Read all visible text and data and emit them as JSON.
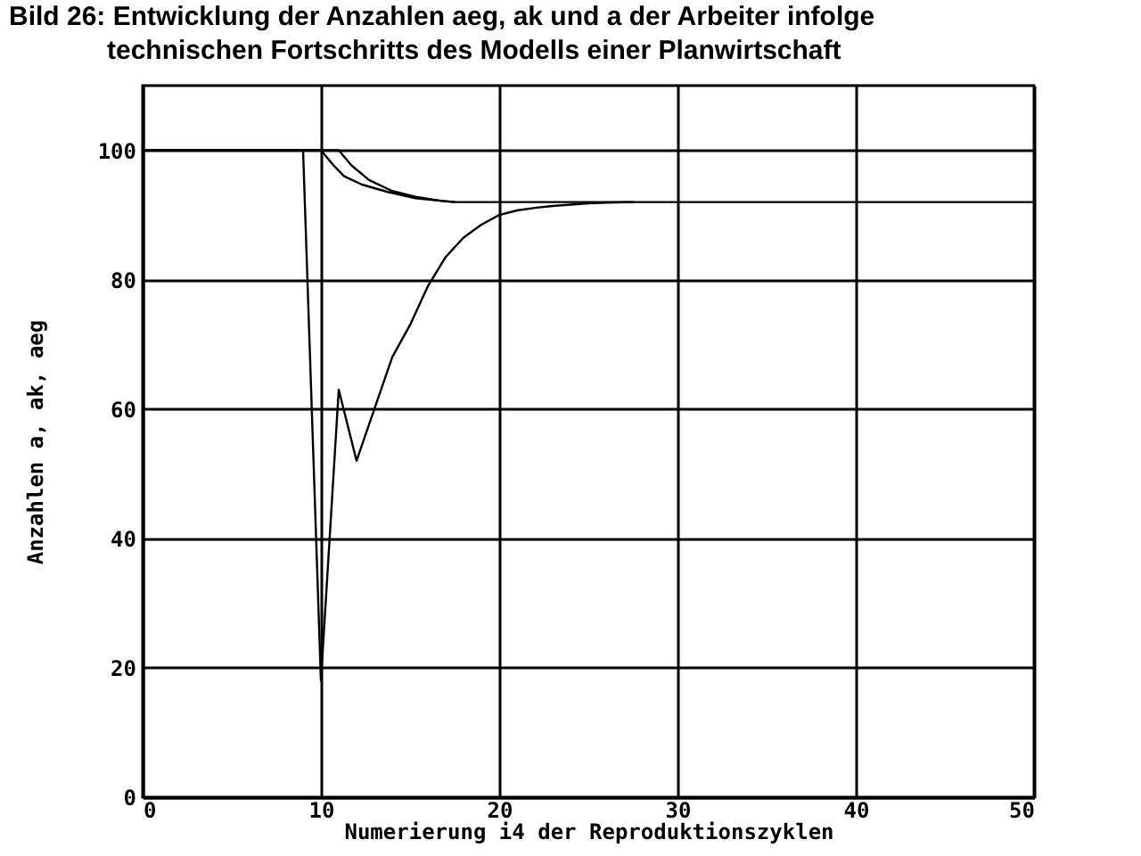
{
  "chart_data": {
    "type": "line",
    "title": "Bild 26: Entwicklung der Anzahlen aeg, ak und a der Arbeiter infolge technischen Fortschritts des Modells einer Planwirtschaft",
    "xlabel": "Numerierung i4 der Reproduktionszyklen",
    "ylabel": "Anzahlen a, ak, aeg",
    "xlim": [
      0,
      50
    ],
    "ylim": [
      0,
      110
    ],
    "xticks": [
      0,
      10,
      20,
      30,
      40,
      50
    ],
    "yticks": [
      0,
      20,
      40,
      60,
      80,
      100
    ],
    "grid": true,
    "line_style": "solid",
    "series": [
      {
        "color": "#000000",
        "x": [
          0,
          9,
          10,
          11,
          12,
          13,
          14,
          15,
          16,
          17,
          18,
          19,
          20,
          21,
          22,
          23,
          24,
          25,
          26,
          27.5
        ],
        "values": [
          100,
          100,
          18,
          63,
          52,
          60,
          68,
          73,
          79,
          83.5,
          86.5,
          88.5,
          90,
          90.7,
          91.1,
          91.4,
          91.6,
          91.8,
          91.9,
          92
        ]
      },
      {
        "color": "#000000",
        "x": [
          0,
          10,
          10.7,
          11.3,
          12.3,
          13.7,
          15.3,
          16.7,
          17.5,
          50
        ],
        "values": [
          100,
          100,
          97.7,
          96,
          94.7,
          93.6,
          92.6,
          92.2,
          92,
          92
        ]
      },
      {
        "color": "#000000",
        "x": [
          0,
          11,
          11.7,
          12.7,
          14,
          15.3,
          16.7,
          17.5
        ],
        "values": [
          100,
          100,
          97.7,
          95.4,
          93.7,
          92.8,
          92.2,
          92
        ]
      }
    ]
  }
}
